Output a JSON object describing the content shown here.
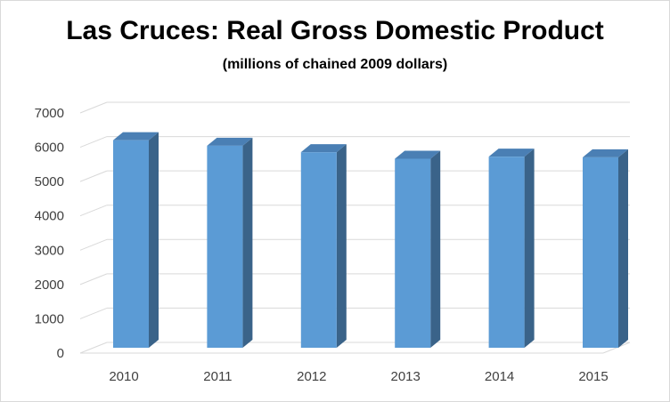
{
  "chart_data": {
    "type": "bar",
    "title": "Las Cruces: Real Gross Domestic Product",
    "subtitle": "(millions of chained 2009 dollars)",
    "categories": [
      "2010",
      "2011",
      "2012",
      "2013",
      "2014",
      "2015"
    ],
    "series": [
      {
        "values": [
          6050,
          5890,
          5700,
          5510,
          5570,
          5550
        ]
      }
    ],
    "ylim": [
      0,
      7000
    ],
    "yticks": [
      0,
      1000,
      2000,
      3000,
      4000,
      5000,
      6000,
      7000
    ],
    "grid": true,
    "legend": "none",
    "style": "3d-column",
    "colors": {
      "bar_front": "#5b9bd5",
      "bar_side": "#3a6389",
      "bar_top": "#4a7fb4",
      "grid": "#d9d9d9"
    }
  }
}
